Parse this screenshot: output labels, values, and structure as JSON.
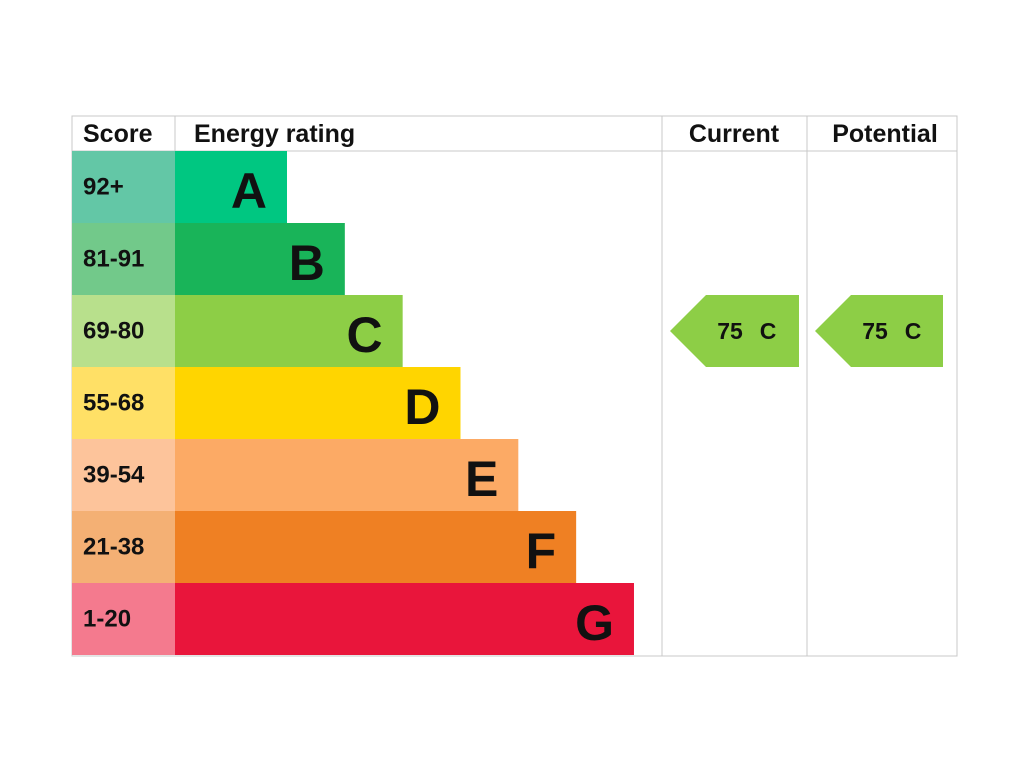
{
  "header": {
    "score": "Score",
    "energy_rating": "Energy rating",
    "current": "Current",
    "potential": "Potential"
  },
  "rows": [
    {
      "score": "92+",
      "band": "A",
      "color": "#00c781",
      "score_color": "#63c7a6"
    },
    {
      "score": "81-91",
      "band": "B",
      "color": "#19b459",
      "score_color": "#72c98a"
    },
    {
      "score": "69-80",
      "band": "C",
      "color": "#8dce46",
      "score_color": "#b8e08c"
    },
    {
      "score": "55-68",
      "band": "D",
      "color": "#ffd500",
      "score_color": "#ffe066"
    },
    {
      "score": "39-54",
      "band": "E",
      "color": "#fcaa65",
      "score_color": "#fdc49b"
    },
    {
      "score": "21-38",
      "band": "F",
      "color": "#ef8023",
      "score_color": "#f4b074"
    },
    {
      "score": "1-20",
      "band": "G",
      "color": "#e9153b",
      "score_color": "#f47a8e"
    }
  ],
  "current": {
    "score": 75,
    "band": "C"
  },
  "potential": {
    "score": 75,
    "band": "C"
  }
}
